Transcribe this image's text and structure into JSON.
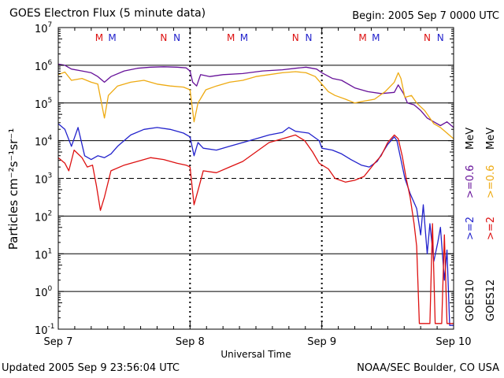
{
  "header": {
    "title": "GOES Electron Flux (5 minute data)",
    "begin": "Begin: 2005 Sep 7 0000 UTC"
  },
  "footer": {
    "updated": "Updated 2005 Sep  9 23:56:04 UTC",
    "source": "NOAA/SEC Boulder, CO USA"
  },
  "colors": {
    "goes10_ge2": "#2222cc",
    "goes12_ge2": "#dd1111",
    "goes10_ge06": "#661199",
    "goes12_ge06": "#eeaa11",
    "marker_M": "#dd1111",
    "marker_N": "#2222cc",
    "axis": "#000000"
  },
  "chart_data": {
    "type": "line",
    "title": "GOES Electron Flux (5 minute data)",
    "xlabel": "Universal Time",
    "ylabel": "Particles cm⁻²s⁻¹sr⁻¹",
    "x_unit": "days since 2005 Sep 7 0000 UTC",
    "xlim": [
      0,
      3
    ],
    "ylim_log10": [
      -1,
      7
    ],
    "yscale": "log",
    "x_tick_labels": [
      {
        "x": 0,
        "label": "Sep 7"
      },
      {
        "x": 1,
        "label": "Sep 8"
      },
      {
        "x": 2,
        "label": "Sep 9"
      },
      {
        "x": 3,
        "label": "Sep 10"
      }
    ],
    "y_tick_exponents": [
      7,
      6,
      5,
      4,
      3,
      2,
      1,
      0,
      -1
    ],
    "y_tick_base": "10",
    "gridlines_log10": [
      6,
      5,
      4,
      2,
      1,
      0
    ],
    "dashed_gridline_log10": 3,
    "side_labels": {
      "goes10": "GOES10",
      "goes12": "GOES12",
      "goes10_ge2": ">=2",
      "goes10_ge06": ">=0.6",
      "goes12_ge2": ">=2",
      "goes12_ge06": ">=0.6",
      "unit": "MeV"
    },
    "markers": [
      {
        "x": 0.31,
        "label": "M",
        "sat": "goes12"
      },
      {
        "x": 0.41,
        "label": "M",
        "sat": "goes10"
      },
      {
        "x": 0.8,
        "label": "N",
        "sat": "goes12"
      },
      {
        "x": 0.9,
        "label": "N",
        "sat": "goes10"
      },
      {
        "x": 1.31,
        "label": "M",
        "sat": "goes12"
      },
      {
        "x": 1.41,
        "label": "M",
        "sat": "goes10"
      },
      {
        "x": 1.8,
        "label": "N",
        "sat": "goes12"
      },
      {
        "x": 1.9,
        "label": "N",
        "sat": "goes10"
      },
      {
        "x": 2.31,
        "label": "M",
        "sat": "goes12"
      },
      {
        "x": 2.41,
        "label": "M",
        "sat": "goes10"
      },
      {
        "x": 2.8,
        "label": "N",
        "sat": "goes12"
      },
      {
        "x": 2.9,
        "label": "N",
        "sat": "goes10"
      }
    ],
    "series": [
      {
        "name": "GOES10 >=0.6 MeV",
        "color_key": "goes10_ge06",
        "points": [
          [
            0,
            6.03
          ],
          [
            0.05,
            6.0
          ],
          [
            0.1,
            5.9
          ],
          [
            0.18,
            5.85
          ],
          [
            0.25,
            5.8
          ],
          [
            0.3,
            5.7
          ],
          [
            0.35,
            5.55
          ],
          [
            0.4,
            5.7
          ],
          [
            0.5,
            5.85
          ],
          [
            0.6,
            5.92
          ],
          [
            0.7,
            5.95
          ],
          [
            0.8,
            5.96
          ],
          [
            0.9,
            5.95
          ],
          [
            0.97,
            5.93
          ],
          [
            1.0,
            5.85
          ],
          [
            1.02,
            5.55
          ],
          [
            1.05,
            5.45
          ],
          [
            1.08,
            5.75
          ],
          [
            1.15,
            5.7
          ],
          [
            1.25,
            5.75
          ],
          [
            1.4,
            5.78
          ],
          [
            1.55,
            5.85
          ],
          [
            1.7,
            5.88
          ],
          [
            1.8,
            5.92
          ],
          [
            1.88,
            5.95
          ],
          [
            1.96,
            5.9
          ],
          [
            2.0,
            5.8
          ],
          [
            2.08,
            5.65
          ],
          [
            2.15,
            5.6
          ],
          [
            2.25,
            5.4
          ],
          [
            2.35,
            5.3
          ],
          [
            2.45,
            5.25
          ],
          [
            2.55,
            5.28
          ],
          [
            2.58,
            5.48
          ],
          [
            2.62,
            5.25
          ],
          [
            2.65,
            5.0
          ],
          [
            2.7,
            4.95
          ],
          [
            2.75,
            4.8
          ],
          [
            2.8,
            4.6
          ],
          [
            2.85,
            4.5
          ],
          [
            2.9,
            4.4
          ],
          [
            2.95,
            4.5
          ],
          [
            3.0,
            4.35
          ]
        ]
      },
      {
        "name": "GOES12 >=0.6 MeV",
        "color_key": "goes12_ge06",
        "points": [
          [
            0,
            5.75
          ],
          [
            0.05,
            5.82
          ],
          [
            0.1,
            5.6
          ],
          [
            0.18,
            5.65
          ],
          [
            0.25,
            5.55
          ],
          [
            0.3,
            5.5
          ],
          [
            0.35,
            4.6
          ],
          [
            0.38,
            5.2
          ],
          [
            0.45,
            5.45
          ],
          [
            0.55,
            5.55
          ],
          [
            0.65,
            5.6
          ],
          [
            0.75,
            5.5
          ],
          [
            0.85,
            5.45
          ],
          [
            0.95,
            5.42
          ],
          [
            1.0,
            5.35
          ],
          [
            1.03,
            4.5
          ],
          [
            1.06,
            5.0
          ],
          [
            1.12,
            5.35
          ],
          [
            1.2,
            5.45
          ],
          [
            1.3,
            5.55
          ],
          [
            1.4,
            5.6
          ],
          [
            1.5,
            5.7
          ],
          [
            1.6,
            5.75
          ],
          [
            1.7,
            5.8
          ],
          [
            1.8,
            5.83
          ],
          [
            1.88,
            5.8
          ],
          [
            1.95,
            5.7
          ],
          [
            2.0,
            5.5
          ],
          [
            2.05,
            5.3
          ],
          [
            2.1,
            5.2
          ],
          [
            2.18,
            5.1
          ],
          [
            2.25,
            5.0
          ],
          [
            2.32,
            5.05
          ],
          [
            2.4,
            5.1
          ],
          [
            2.48,
            5.3
          ],
          [
            2.55,
            5.55
          ],
          [
            2.58,
            5.8
          ],
          [
            2.6,
            5.65
          ],
          [
            2.63,
            5.15
          ],
          [
            2.68,
            5.2
          ],
          [
            2.72,
            5.0
          ],
          [
            2.78,
            4.8
          ],
          [
            2.85,
            4.45
          ],
          [
            2.9,
            4.35
          ],
          [
            2.95,
            4.2
          ],
          [
            3.0,
            4.05
          ]
        ]
      },
      {
        "name": "GOES10 >=2 MeV",
        "color_key": "goes10_ge2",
        "points": [
          [
            0,
            4.45
          ],
          [
            0.05,
            4.3
          ],
          [
            0.1,
            3.85
          ],
          [
            0.15,
            4.35
          ],
          [
            0.2,
            3.6
          ],
          [
            0.25,
            3.5
          ],
          [
            0.3,
            3.6
          ],
          [
            0.35,
            3.55
          ],
          [
            0.4,
            3.65
          ],
          [
            0.45,
            3.85
          ],
          [
            0.55,
            4.15
          ],
          [
            0.65,
            4.3
          ],
          [
            0.75,
            4.35
          ],
          [
            0.85,
            4.3
          ],
          [
            0.95,
            4.2
          ],
          [
            1.0,
            4.1
          ],
          [
            1.03,
            3.6
          ],
          [
            1.06,
            3.95
          ],
          [
            1.1,
            3.8
          ],
          [
            1.2,
            3.75
          ],
          [
            1.3,
            3.85
          ],
          [
            1.4,
            3.95
          ],
          [
            1.5,
            4.05
          ],
          [
            1.6,
            4.15
          ],
          [
            1.7,
            4.22
          ],
          [
            1.75,
            4.35
          ],
          [
            1.8,
            4.25
          ],
          [
            1.9,
            4.2
          ],
          [
            1.98,
            4.0
          ],
          [
            2.0,
            3.8
          ],
          [
            2.08,
            3.75
          ],
          [
            2.15,
            3.65
          ],
          [
            2.22,
            3.5
          ],
          [
            2.3,
            3.35
          ],
          [
            2.36,
            3.3
          ],
          [
            2.42,
            3.45
          ],
          [
            2.5,
            3.9
          ],
          [
            2.55,
            4.1
          ],
          [
            2.57,
            4.0
          ],
          [
            2.6,
            3.5
          ],
          [
            2.63,
            3.0
          ],
          [
            2.67,
            2.6
          ],
          [
            2.72,
            2.2
          ],
          [
            2.75,
            1.5
          ],
          [
            2.77,
            2.3
          ],
          [
            2.8,
            1.0
          ],
          [
            2.82,
            1.8
          ],
          [
            2.85,
            0.8
          ],
          [
            2.88,
            1.3
          ],
          [
            2.9,
            1.7
          ],
          [
            2.93,
            0.3
          ],
          [
            2.95,
            1.1
          ],
          [
            2.97,
            -0.9
          ],
          [
            3.0,
            -0.9
          ]
        ]
      },
      {
        "name": "GOES12 >=2 MeV",
        "color_key": "goes12_ge2",
        "points": [
          [
            0,
            3.55
          ],
          [
            0.05,
            3.4
          ],
          [
            0.08,
            3.2
          ],
          [
            0.12,
            3.75
          ],
          [
            0.18,
            3.55
          ],
          [
            0.22,
            3.3
          ],
          [
            0.26,
            3.35
          ],
          [
            0.29,
            2.8
          ],
          [
            0.32,
            2.15
          ],
          [
            0.35,
            2.5
          ],
          [
            0.4,
            3.2
          ],
          [
            0.5,
            3.35
          ],
          [
            0.6,
            3.45
          ],
          [
            0.7,
            3.55
          ],
          [
            0.8,
            3.5
          ],
          [
            0.9,
            3.4
          ],
          [
            0.97,
            3.35
          ],
          [
            1.0,
            3.3
          ],
          [
            1.03,
            2.3
          ],
          [
            1.07,
            2.8
          ],
          [
            1.1,
            3.2
          ],
          [
            1.2,
            3.15
          ],
          [
            1.3,
            3.3
          ],
          [
            1.4,
            3.45
          ],
          [
            1.5,
            3.7
          ],
          [
            1.6,
            3.95
          ],
          [
            1.7,
            4.05
          ],
          [
            1.8,
            4.15
          ],
          [
            1.87,
            4.0
          ],
          [
            1.93,
            3.7
          ],
          [
            1.98,
            3.4
          ],
          [
            2.05,
            3.25
          ],
          [
            2.1,
            3.0
          ],
          [
            2.18,
            2.9
          ],
          [
            2.25,
            2.95
          ],
          [
            2.32,
            3.05
          ],
          [
            2.4,
            3.4
          ],
          [
            2.45,
            3.6
          ],
          [
            2.5,
            3.95
          ],
          [
            2.55,
            4.15
          ],
          [
            2.58,
            4.05
          ],
          [
            2.61,
            3.6
          ],
          [
            2.64,
            3.0
          ],
          [
            2.67,
            2.5
          ],
          [
            2.7,
            1.8
          ],
          [
            2.72,
            1.2
          ],
          [
            2.74,
            -0.85
          ],
          [
            2.82,
            -0.85
          ],
          [
            2.84,
            1.8
          ],
          [
            2.86,
            -0.85
          ],
          [
            2.91,
            -0.85
          ],
          [
            2.93,
            1.5
          ],
          [
            2.95,
            -0.85
          ],
          [
            3.0,
            -0.85
          ]
        ]
      }
    ]
  }
}
